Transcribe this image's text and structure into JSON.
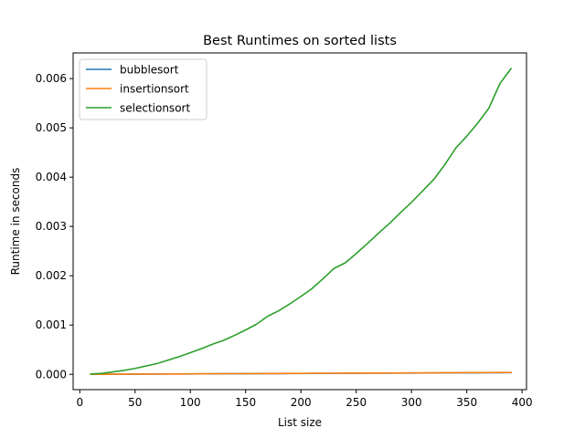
{
  "chart_data": {
    "type": "line",
    "title": "Best Runtimes on sorted lists",
    "xlabel": "List size",
    "ylabel": "Runtime in seconds",
    "xlim": [
      -6,
      404
    ],
    "ylim": [
      -0.00031,
      0.00652
    ],
    "xticks": [
      0,
      50,
      100,
      150,
      200,
      250,
      300,
      350,
      400
    ],
    "yticks": [
      0,
      0.001,
      0.002,
      0.003,
      0.004,
      0.005,
      0.006
    ],
    "ytick_labels": [
      "0.000",
      "0.001",
      "0.002",
      "0.003",
      "0.004",
      "0.005",
      "0.006"
    ],
    "legend_position": "upper-left",
    "grid": false,
    "x": [
      10,
      20,
      30,
      40,
      50,
      60,
      70,
      80,
      90,
      100,
      110,
      120,
      130,
      140,
      150,
      160,
      170,
      180,
      190,
      200,
      210,
      220,
      230,
      240,
      250,
      260,
      270,
      280,
      290,
      300,
      310,
      320,
      330,
      340,
      350,
      360,
      370,
      380,
      390
    ],
    "series": [
      {
        "name": "bubblesort",
        "color": "#1f77b4",
        "values": [
          1e-06,
          2e-06,
          3e-06,
          3e-06,
          4e-06,
          5e-06,
          6e-06,
          7e-06,
          8e-06,
          9e-06,
          1e-05,
          1.1e-05,
          1.2e-05,
          1.3e-05,
          1.3e-05,
          1.4e-05,
          1.5e-05,
          1.6e-05,
          1.7e-05,
          1.8e-05,
          1.9e-05,
          2e-05,
          2.1e-05,
          2.1e-05,
          2.2e-05,
          2.3e-05,
          2.4e-05,
          2.5e-05,
          2.6e-05,
          2.7e-05,
          2.8e-05,
          2.9e-05,
          3e-05,
          3e-05,
          3.1e-05,
          3.2e-05,
          3.3e-05,
          3.4e-05,
          3.5e-05
        ]
      },
      {
        "name": "insertionsort",
        "color": "#ff7f0e",
        "values": [
          1e-06,
          2e-06,
          3e-06,
          4e-06,
          5e-06,
          6e-06,
          7e-06,
          8e-06,
          9e-06,
          1e-05,
          1.1e-05,
          1.2e-05,
          1.3e-05,
          1.4e-05,
          1.5e-05,
          1.6e-05,
          1.7e-05,
          1.8e-05,
          1.9e-05,
          2e-05,
          2.1e-05,
          2.2e-05,
          2.3e-05,
          2.4e-05,
          2.5e-05,
          2.6e-05,
          2.7e-05,
          2.8e-05,
          2.9e-05,
          3e-05,
          3.1e-05,
          3.2e-05,
          3.3e-05,
          3.4e-05,
          3.5e-05,
          3.6e-05,
          3.7e-05,
          3.8e-05,
          3.9e-05
        ]
      },
      {
        "name": "selectionsort",
        "color": "#2ca02c",
        "values": [
          5e-06,
          2e-05,
          5e-05,
          8e-05,
          0.00012,
          0.00017,
          0.00022,
          0.00029,
          0.00036,
          0.00044,
          0.00052,
          0.00061,
          0.00069,
          0.00079,
          0.0009,
          0.00102,
          0.00118,
          0.00129,
          0.00143,
          0.00158,
          0.00174,
          0.00194,
          0.00215,
          0.00226,
          0.00245,
          0.00265,
          0.00286,
          0.00306,
          0.00328,
          0.00349,
          0.00372,
          0.00395,
          0.00425,
          0.00459,
          0.00483,
          0.0051,
          0.0054,
          0.0059,
          0.0062
        ]
      }
    ]
  }
}
